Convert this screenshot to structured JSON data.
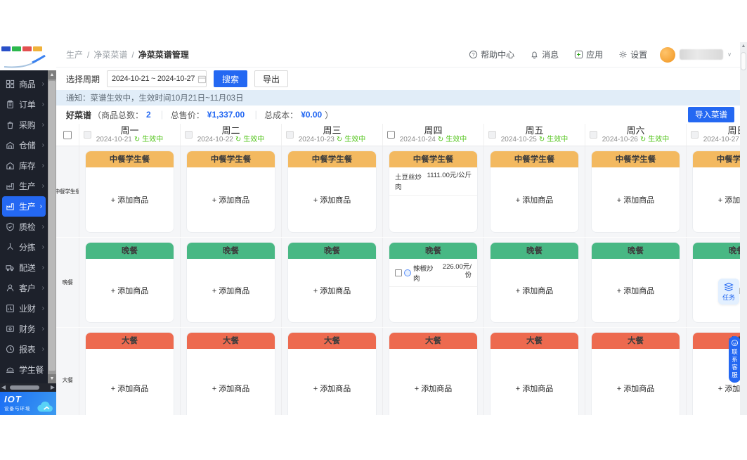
{
  "logo": {
    "bar_colors": [
      "#2950c8",
      "#2db84d",
      "#e25050",
      "#f0b23a"
    ]
  },
  "topbar": {
    "breadcrumb": [
      "生产",
      "净菜菜谱",
      "净菜菜谱管理"
    ],
    "actions": [
      {
        "label": "帮助中心",
        "icon": "help-circle"
      },
      {
        "label": "消息",
        "icon": "bell"
      },
      {
        "label": "应用",
        "icon": "apps"
      },
      {
        "label": "设置",
        "icon": "gear"
      }
    ]
  },
  "sidebar": {
    "items": [
      {
        "label": "商品",
        "icon": "grid"
      },
      {
        "label": "订单",
        "icon": "clipboard"
      },
      {
        "label": "采购",
        "icon": "bag"
      },
      {
        "label": "仓储",
        "icon": "warehouse"
      },
      {
        "label": "库存",
        "icon": "house"
      },
      {
        "label": "生产",
        "icon": "factory"
      },
      {
        "label": "生产",
        "icon": "factory",
        "active": true
      },
      {
        "label": "质检",
        "icon": "shield"
      },
      {
        "label": "分拣",
        "icon": "split"
      },
      {
        "label": "配送",
        "icon": "truck"
      },
      {
        "label": "客户",
        "icon": "person"
      },
      {
        "label": "业财",
        "icon": "chart"
      },
      {
        "label": "财务",
        "icon": "money"
      },
      {
        "label": "报表",
        "icon": "clock"
      },
      {
        "label": "学生餐",
        "icon": "dome"
      }
    ],
    "brand": {
      "name": "IOT",
      "subtitle": "设备与环境"
    }
  },
  "filters": {
    "period_label": "选择周期",
    "period_value": "2024-10-21 ~ 2024-10-27",
    "search_label": "搜索",
    "export_label": "导出"
  },
  "notice": {
    "text": "通知：菜谱生效中，生效时间10月21日~11月03日"
  },
  "summary": {
    "name": "好菜谱",
    "open_paren": "（",
    "items_label": "商品总数：",
    "items_value": "2",
    "sep": "｜",
    "price_label": "总售价：",
    "price_value": "¥1,337.00",
    "cost_label": "总成本：",
    "cost_value": "¥0.00",
    "close_paren": "）",
    "import_label": "导入菜谱"
  },
  "week": {
    "add_label": "+ 添加商品",
    "status_color": "#52c41a",
    "days": [
      {
        "name": "周一",
        "date": "2024-10-21",
        "status": "生效中",
        "checkbox_active": false
      },
      {
        "name": "周二",
        "date": "2024-10-22",
        "status": "生效中",
        "checkbox_active": false
      },
      {
        "name": "周三",
        "date": "2024-10-23",
        "status": "生效中",
        "checkbox_active": false
      },
      {
        "name": "周四",
        "date": "2024-10-24",
        "status": "生效中",
        "checkbox_active": true
      },
      {
        "name": "周五",
        "date": "2024-10-25",
        "status": "生效中",
        "checkbox_active": false
      },
      {
        "name": "周六",
        "date": "2024-10-26",
        "status": "生效中",
        "checkbox_active": false
      },
      {
        "name": "周日",
        "date": "2024-10-27",
        "status": "生效中",
        "checkbox_active": false
      }
    ],
    "meals": [
      {
        "label": "中餐学生餐",
        "header": "中餐学生餐",
        "color": "#f3b960",
        "items_by_day": {
          "3": [
            {
              "name": "土豆丝炒肉",
              "price": "1111.00元/公斤",
              "has_checkbox": false
            }
          ]
        }
      },
      {
        "label": "晚餐",
        "header": "晚餐",
        "color": "#48b884",
        "items_by_day": {
          "3": [
            {
              "name": "辣椒炒肉",
              "price": "226.00元/份",
              "has_checkbox": true
            }
          ]
        }
      },
      {
        "label": "大餐",
        "header": "大餐",
        "color": "#ed6a4f",
        "items_by_day": {}
      }
    ]
  },
  "floating": {
    "task": "任务",
    "service": "联系客服"
  },
  "colors": {
    "accent_blue": "#2468f2",
    "orange_header": "#f3b960",
    "green_header": "#48b884",
    "red_header": "#ed6a4f",
    "status_green": "#52c41a"
  }
}
